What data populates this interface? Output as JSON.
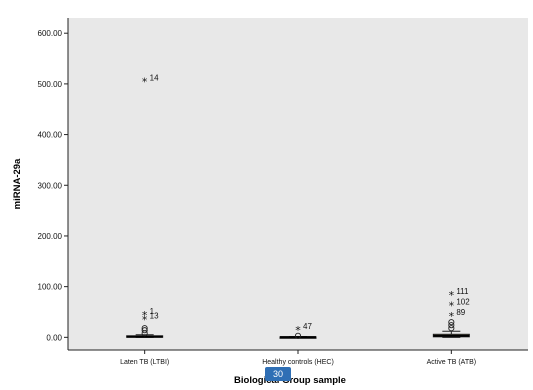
{
  "chart_data": {
    "type": "boxplot",
    "title": "",
    "xlabel": "Biological Group sample",
    "ylabel": "miRNA-29a",
    "ylim": [
      -25,
      630
    ],
    "yticks": [
      0,
      100,
      200,
      300,
      400,
      500,
      600
    ],
    "ytick_labels": [
      "0.00",
      "100.00",
      "200.00",
      "300.00",
      "400.00",
      "500.00",
      "600.00"
    ],
    "grid": false,
    "background": "#e8e8e8",
    "box_color": "#e8dca8",
    "categories": [
      "Laten TB (LTBI)",
      "Healthy controls (HEC)",
      "Active TB (ATB)"
    ],
    "boxes": [
      {
        "q1": 0.5,
        "median": 1.5,
        "q3": 3,
        "whisker_low": 0,
        "whisker_high": 5,
        "outliers": [
          {
            "y": 8,
            "type": "circle",
            "label": ""
          },
          {
            "y": 14,
            "type": "circle",
            "label": ""
          },
          {
            "y": 18,
            "type": "circle",
            "label": ""
          },
          {
            "y": 35,
            "type": "star",
            "label": "13"
          },
          {
            "y": 44,
            "type": "star",
            "label": "1"
          },
          {
            "y": 505,
            "type": "star",
            "label": "14"
          }
        ]
      },
      {
        "q1": 0,
        "median": 0.5,
        "q3": 1,
        "whisker_low": 0,
        "whisker_high": 1.5,
        "outliers": [
          {
            "y": 3,
            "type": "circle",
            "label": ""
          },
          {
            "y": 14,
            "type": "star",
            "label": "47"
          }
        ]
      },
      {
        "q1": 1,
        "median": 3,
        "q3": 6,
        "whisker_low": 0,
        "whisker_high": 12,
        "outliers": [
          {
            "y": 18,
            "type": "circle",
            "label": ""
          },
          {
            "y": 24,
            "type": "circle",
            "label": ""
          },
          {
            "y": 30,
            "type": "circle",
            "label": ""
          },
          {
            "y": 42,
            "type": "star",
            "label": "89"
          },
          {
            "y": 63,
            "type": "star",
            "label": "102"
          },
          {
            "y": 84,
            "type": "star",
            "label": "111"
          }
        ]
      }
    ]
  },
  "badge_text": "30"
}
